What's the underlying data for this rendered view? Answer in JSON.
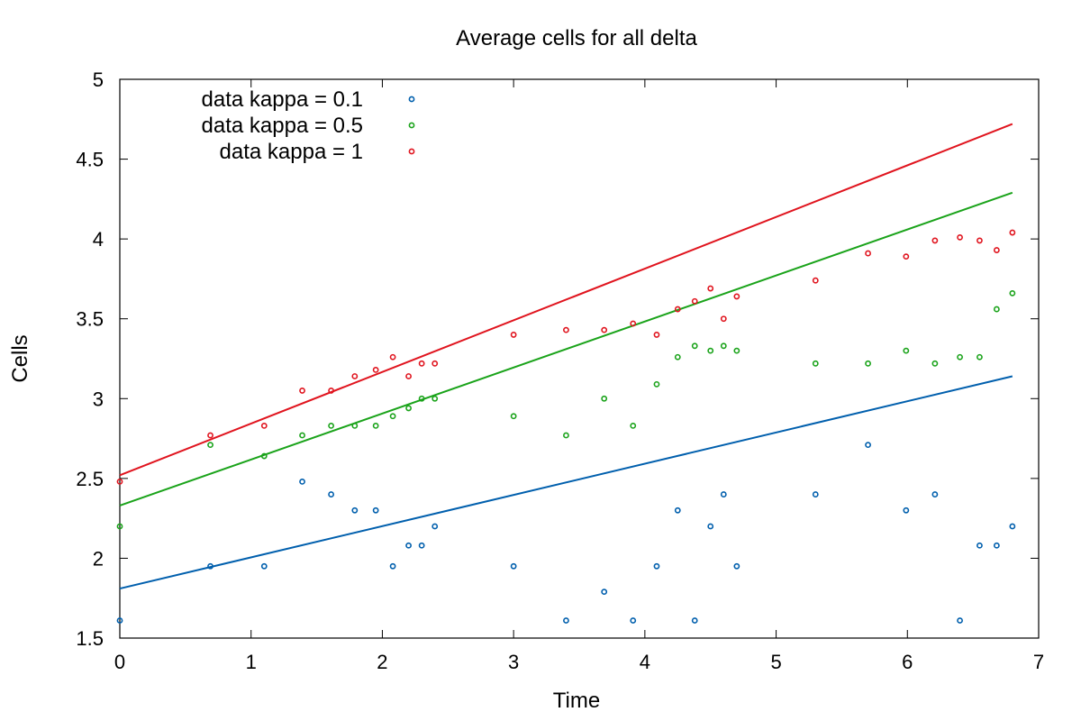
{
  "chart_data": {
    "type": "scatter",
    "title": "Average cells for all delta",
    "xlabel": "Time",
    "ylabel": "Cells",
    "xlim": [
      0,
      7
    ],
    "ylim": [
      1.5,
      5
    ],
    "xticks": [
      0,
      1,
      2,
      3,
      4,
      5,
      6,
      7
    ],
    "yticks": [
      1.5,
      2,
      2.5,
      3,
      3.5,
      4,
      4.5,
      5
    ],
    "xtick_labels": [
      "0",
      "1",
      "2",
      "3",
      "4",
      "5",
      "6",
      "7"
    ],
    "ytick_labels": [
      "1.5",
      "2",
      "2.5",
      "3",
      "3.5",
      "4",
      "4.5",
      "5"
    ],
    "legend_position": "top-left",
    "x": [
      0,
      0.69,
      1.1,
      1.39,
      1.61,
      1.79,
      1.95,
      2.08,
      2.2,
      2.3,
      2.4,
      3.0,
      3.4,
      3.69,
      3.91,
      4.09,
      4.25,
      4.38,
      4.5,
      4.6,
      4.7,
      5.3,
      5.7,
      5.99,
      6.21,
      6.4,
      6.55,
      6.68,
      6.8
    ],
    "series": [
      {
        "name": "data kappa = 0.1",
        "color": "#005fad",
        "values": [
          1.61,
          1.95,
          1.95,
          2.48,
          2.4,
          2.3,
          2.3,
          1.95,
          2.08,
          2.08,
          2.2,
          1.95,
          1.61,
          1.79,
          1.61,
          1.95,
          2.3,
          1.61,
          2.2,
          2.4,
          1.95,
          2.4,
          2.71,
          2.3,
          2.4,
          1.61,
          2.08,
          2.08,
          2.2
        ],
        "fit": [
          1.81,
          3.14
        ]
      },
      {
        "name": "data kappa = 0.5",
        "color": "#1aa31a",
        "values": [
          2.2,
          2.71,
          2.64,
          2.77,
          2.83,
          2.83,
          2.83,
          2.89,
          2.94,
          3.0,
          3.0,
          2.89,
          2.77,
          3.0,
          2.83,
          3.09,
          3.26,
          3.33,
          3.3,
          3.33,
          3.3,
          3.22,
          3.22,
          3.3,
          3.22,
          3.26,
          3.26,
          3.56,
          3.66
        ],
        "fit": [
          2.33,
          4.29
        ]
      },
      {
        "name": "data kappa = 1",
        "color": "#e0141e",
        "values": [
          2.48,
          2.77,
          2.83,
          3.05,
          3.05,
          3.14,
          3.18,
          3.26,
          3.14,
          3.22,
          3.22,
          3.4,
          3.43,
          3.43,
          3.47,
          3.4,
          3.56,
          3.61,
          3.69,
          3.5,
          3.64,
          3.74,
          3.91,
          3.89,
          3.99,
          4.01,
          3.99,
          3.93,
          4.04
        ],
        "fit": [
          2.52,
          4.72
        ]
      }
    ]
  }
}
